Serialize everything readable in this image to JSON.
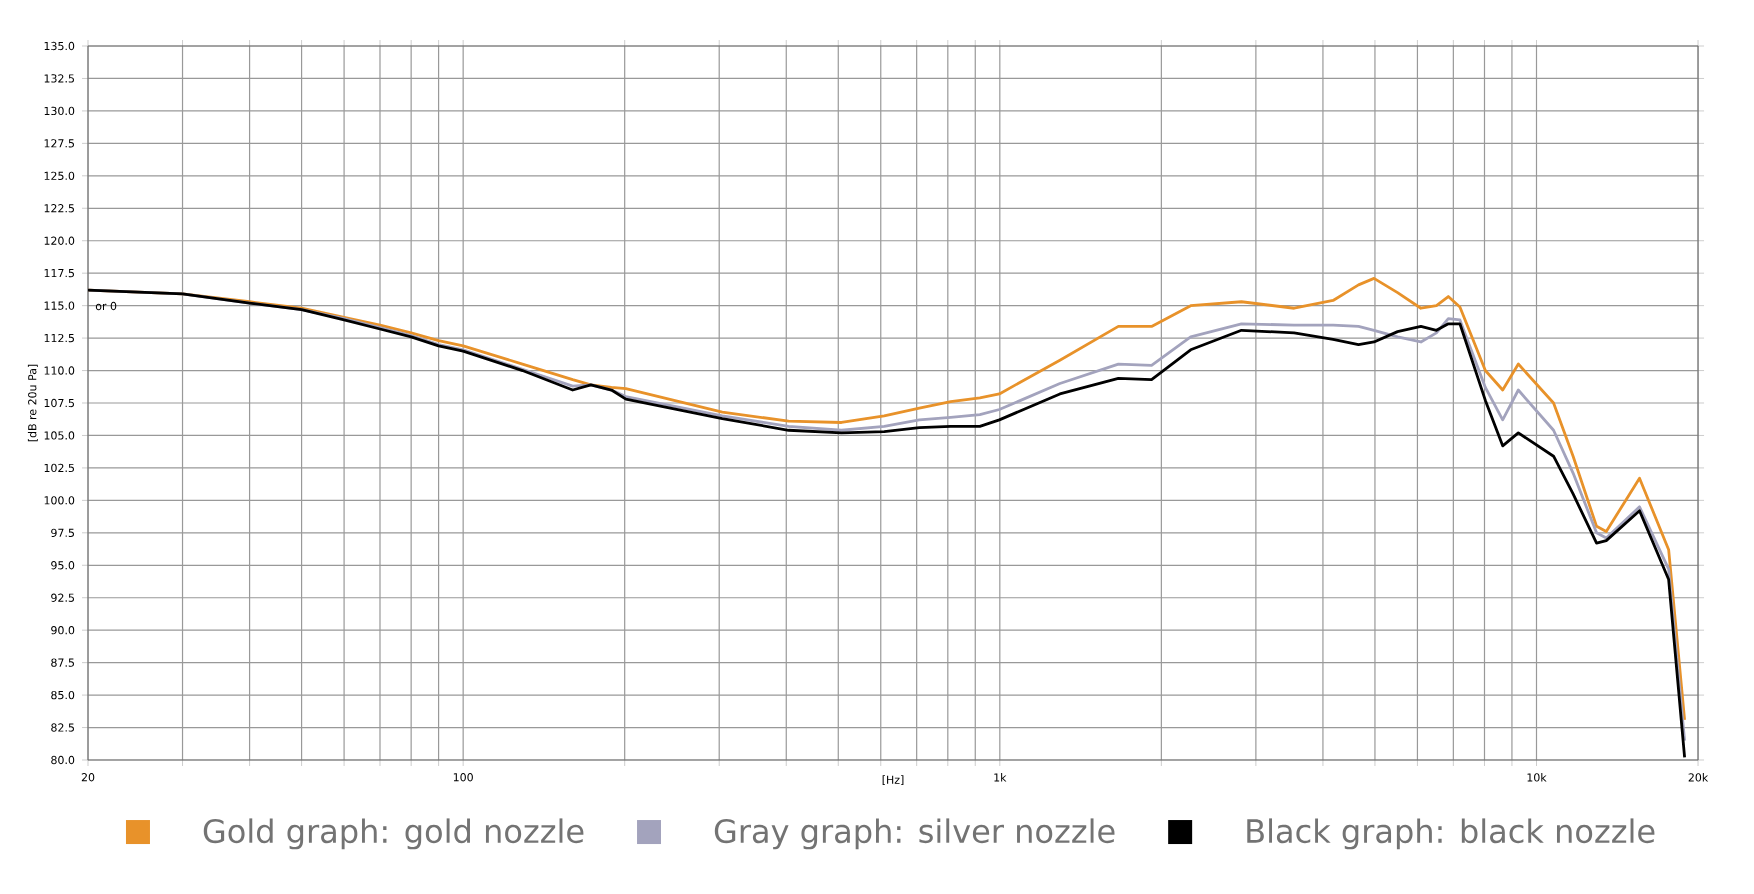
{
  "chart_data": {
    "type": "line",
    "xlabel": "[Hz]",
    "ylabel": "[dB re 20u Pa]",
    "log": "x",
    "grid": true,
    "legend": "bottom",
    "annotations": [
      "or 0"
    ],
    "xlim": [
      20,
      20000
    ],
    "ylim": [
      80,
      135
    ],
    "xticks": [
      {
        "value": 20,
        "label": "20"
      },
      {
        "value": 30,
        "label": null
      },
      {
        "value": 40,
        "label": null
      },
      {
        "value": 50,
        "label": null
      },
      {
        "value": 60,
        "label": null
      },
      {
        "value": 70,
        "label": null
      },
      {
        "value": 80,
        "label": null
      },
      {
        "value": 90,
        "label": null
      },
      {
        "value": 100,
        "label": "100"
      },
      {
        "value": 200,
        "label": null
      },
      {
        "value": 300,
        "label": null
      },
      {
        "value": 400,
        "label": null
      },
      {
        "value": 500,
        "label": null
      },
      {
        "value": 600,
        "label": null
      },
      {
        "value": 700,
        "label": null
      },
      {
        "value": 800,
        "label": null
      },
      {
        "value": 900,
        "label": null
      },
      {
        "value": 1000,
        "label": "1k"
      },
      {
        "value": 2000,
        "label": null
      },
      {
        "value": 3000,
        "label": null
      },
      {
        "value": 4000,
        "label": null
      },
      {
        "value": 5000,
        "label": null
      },
      {
        "value": 6000,
        "label": null
      },
      {
        "value": 7000,
        "label": null
      },
      {
        "value": 8000,
        "label": null
      },
      {
        "value": 9000,
        "label": null
      },
      {
        "value": 10000,
        "label": "10k"
      },
      {
        "value": 20000,
        "label": "20k"
      }
    ],
    "yticks": [
      {
        "value": 80,
        "label": "80.0"
      },
      {
        "value": 82.5,
        "label": "82.5"
      },
      {
        "value": 85,
        "label": "85.0"
      },
      {
        "value": 87.5,
        "label": "87.5"
      },
      {
        "value": 90,
        "label": "90.0"
      },
      {
        "value": 92.5,
        "label": "92.5"
      },
      {
        "value": 95,
        "label": "95.0"
      },
      {
        "value": 97.5,
        "label": "97.5"
      },
      {
        "value": 100,
        "label": "100.0"
      },
      {
        "value": 102.5,
        "label": "102.5"
      },
      {
        "value": 105,
        "label": "105.0"
      },
      {
        "value": 107.5,
        "label": "107.5"
      },
      {
        "value": 110,
        "label": "110.0"
      },
      {
        "value": 112.5,
        "label": "112.5"
      },
      {
        "value": 115,
        "label": "115.0"
      },
      {
        "value": 117.5,
        "label": "117.5"
      },
      {
        "value": 120,
        "label": "120.0"
      },
      {
        "value": 122.5,
        "label": "122.5"
      },
      {
        "value": 125,
        "label": "125.0"
      },
      {
        "value": 127.5,
        "label": "127.5"
      },
      {
        "value": 130,
        "label": "130.0"
      },
      {
        "value": 132.5,
        "label": "132.5"
      },
      {
        "value": 135,
        "label": "135.0"
      }
    ],
    "x": [
      20,
      30,
      40,
      50,
      60,
      70,
      80,
      90,
      100,
      129,
      160,
      173,
      189,
      201,
      304,
      404,
      507,
      609,
      708,
      810,
      918,
      998,
      1294,
      1663,
      1918,
      2268,
      2820,
      3535,
      4178,
      4660,
      4980,
      5510,
      6090,
      6510,
      6850,
      7200,
      8030,
      8650,
      9250,
      10760,
      11700,
      12940,
      13490,
      15560,
      17630,
      18880
    ],
    "series": [
      {
        "name": "Gold graph: gold nozzle",
        "color": "#e8922a",
        "values": [
          116.2,
          115.9,
          115.3,
          114.8,
          114.1,
          113.5,
          112.9,
          112.3,
          111.9,
          110.5,
          109.3,
          108.9,
          108.7,
          108.6,
          106.8,
          106.1,
          106.0,
          106.5,
          107.1,
          107.6,
          107.9,
          108.2,
          110.8,
          113.4,
          113.4,
          115.0,
          115.3,
          114.8,
          115.4,
          116.6,
          117.1,
          116.0,
          114.8,
          115.0,
          115.7,
          114.9,
          110.0,
          108.5,
          110.5,
          107.5,
          103.4,
          98.0,
          97.6,
          101.7,
          96.2,
          83.1
        ]
      },
      {
        "name": "Gray graph: silver nozzle",
        "color": "#a3a3bd",
        "values": [
          116.2,
          115.9,
          115.2,
          114.7,
          114.0,
          113.3,
          112.7,
          112.0,
          111.6,
          110.1,
          108.8,
          108.9,
          108.5,
          108.0,
          106.5,
          105.7,
          105.4,
          105.7,
          106.2,
          106.4,
          106.6,
          107.0,
          109.0,
          110.5,
          110.4,
          112.6,
          113.6,
          113.5,
          113.5,
          113.4,
          113.1,
          112.6,
          112.2,
          112.9,
          114.0,
          113.9,
          108.7,
          106.2,
          108.5,
          105.4,
          102.1,
          97.5,
          97.1,
          99.5,
          94.7,
          81.5
        ]
      },
      {
        "name": "Black graph: black nozzle",
        "color": "#000000",
        "values": [
          116.2,
          115.9,
          115.2,
          114.7,
          113.9,
          113.2,
          112.6,
          111.9,
          111.5,
          110.0,
          108.5,
          108.9,
          108.5,
          107.8,
          106.3,
          105.4,
          105.2,
          105.3,
          105.6,
          105.7,
          105.7,
          106.2,
          108.2,
          109.4,
          109.3,
          111.6,
          113.1,
          112.9,
          112.4,
          112.0,
          112.2,
          113.0,
          113.4,
          113.1,
          113.6,
          113.6,
          107.7,
          104.2,
          105.2,
          103.4,
          100.5,
          96.7,
          96.9,
          99.2,
          93.9,
          80.2
        ]
      }
    ]
  }
}
